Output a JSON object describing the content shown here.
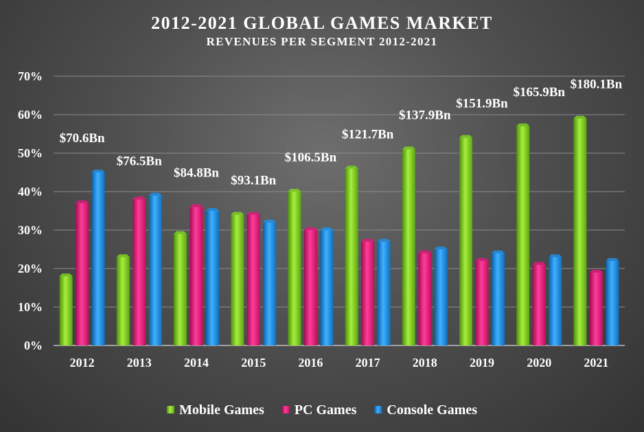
{
  "chart_data": {
    "type": "bar",
    "title": "2012-2021 GLOBAL GAMES MARKET",
    "subtitle": "REVENUES PER SEGMENT 2012-2021",
    "categories": [
      "2012",
      "2013",
      "2014",
      "2015",
      "2016",
      "2017",
      "2018",
      "2019",
      "2020",
      "2021"
    ],
    "series": [
      {
        "name": "Mobile Games",
        "values": [
          18,
          23,
          29,
          34,
          40,
          46,
          51,
          54,
          57,
          59
        ],
        "color": "#7ed321"
      },
      {
        "name": "PC Games",
        "values": [
          37,
          38,
          36,
          34,
          30,
          27,
          24,
          22,
          21,
          19
        ],
        "color": "#e0197a"
      },
      {
        "name": "Console Games",
        "values": [
          45,
          39,
          35,
          32,
          30,
          27,
          25,
          24,
          23,
          22
        ],
        "color": "#1e8fe6"
      }
    ],
    "annotations": [
      "$70.6Bn",
      "$76.5Bn",
      "$84.8Bn",
      "$93.1Bn",
      "$106.5Bn",
      "$121.7Bn",
      "$137.9Bn",
      "$151.9Bn",
      "$165.9Bn",
      "$180.1Bn"
    ],
    "ylim": [
      0,
      70
    ],
    "yticks": [
      0,
      10,
      20,
      30,
      40,
      50,
      60,
      70
    ],
    "ytick_format": "%",
    "grid": true,
    "legend_position": "bottom"
  }
}
